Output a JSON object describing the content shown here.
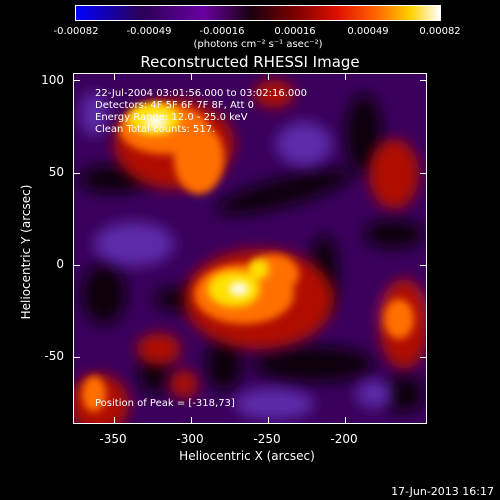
{
  "colorbar": {
    "ticks": [
      "-0.00082",
      "-0.00049",
      "-0.00016",
      "0.00016",
      "0.00049",
      "0.00082"
    ],
    "units": "(photons cm⁻² s⁻¹ asec⁻²)"
  },
  "plot": {
    "title": "Reconstructed RHESSI Image",
    "info_lines": [
      "22-Jul-2004 03:01:56.000 to 03:02:16.000",
      "Detectors: 4F 5F 6F 7F 8F, Att 0",
      "Energy Range: 12.0 - 25.0 keV",
      "Clean   Total counts: 517."
    ],
    "peak_label": "Position of Peak = [-318,73]",
    "xlabel": "Heliocentric X (arcsec)",
    "ylabel": "Heliocentric Y (arcsec)",
    "xticks": [
      "-350",
      "-300",
      "-250",
      "-200"
    ],
    "yticks": [
      "100",
      "50",
      "0",
      "-50"
    ]
  },
  "footer": {
    "timestamp": "17-Jun-2013 16:17"
  }
}
